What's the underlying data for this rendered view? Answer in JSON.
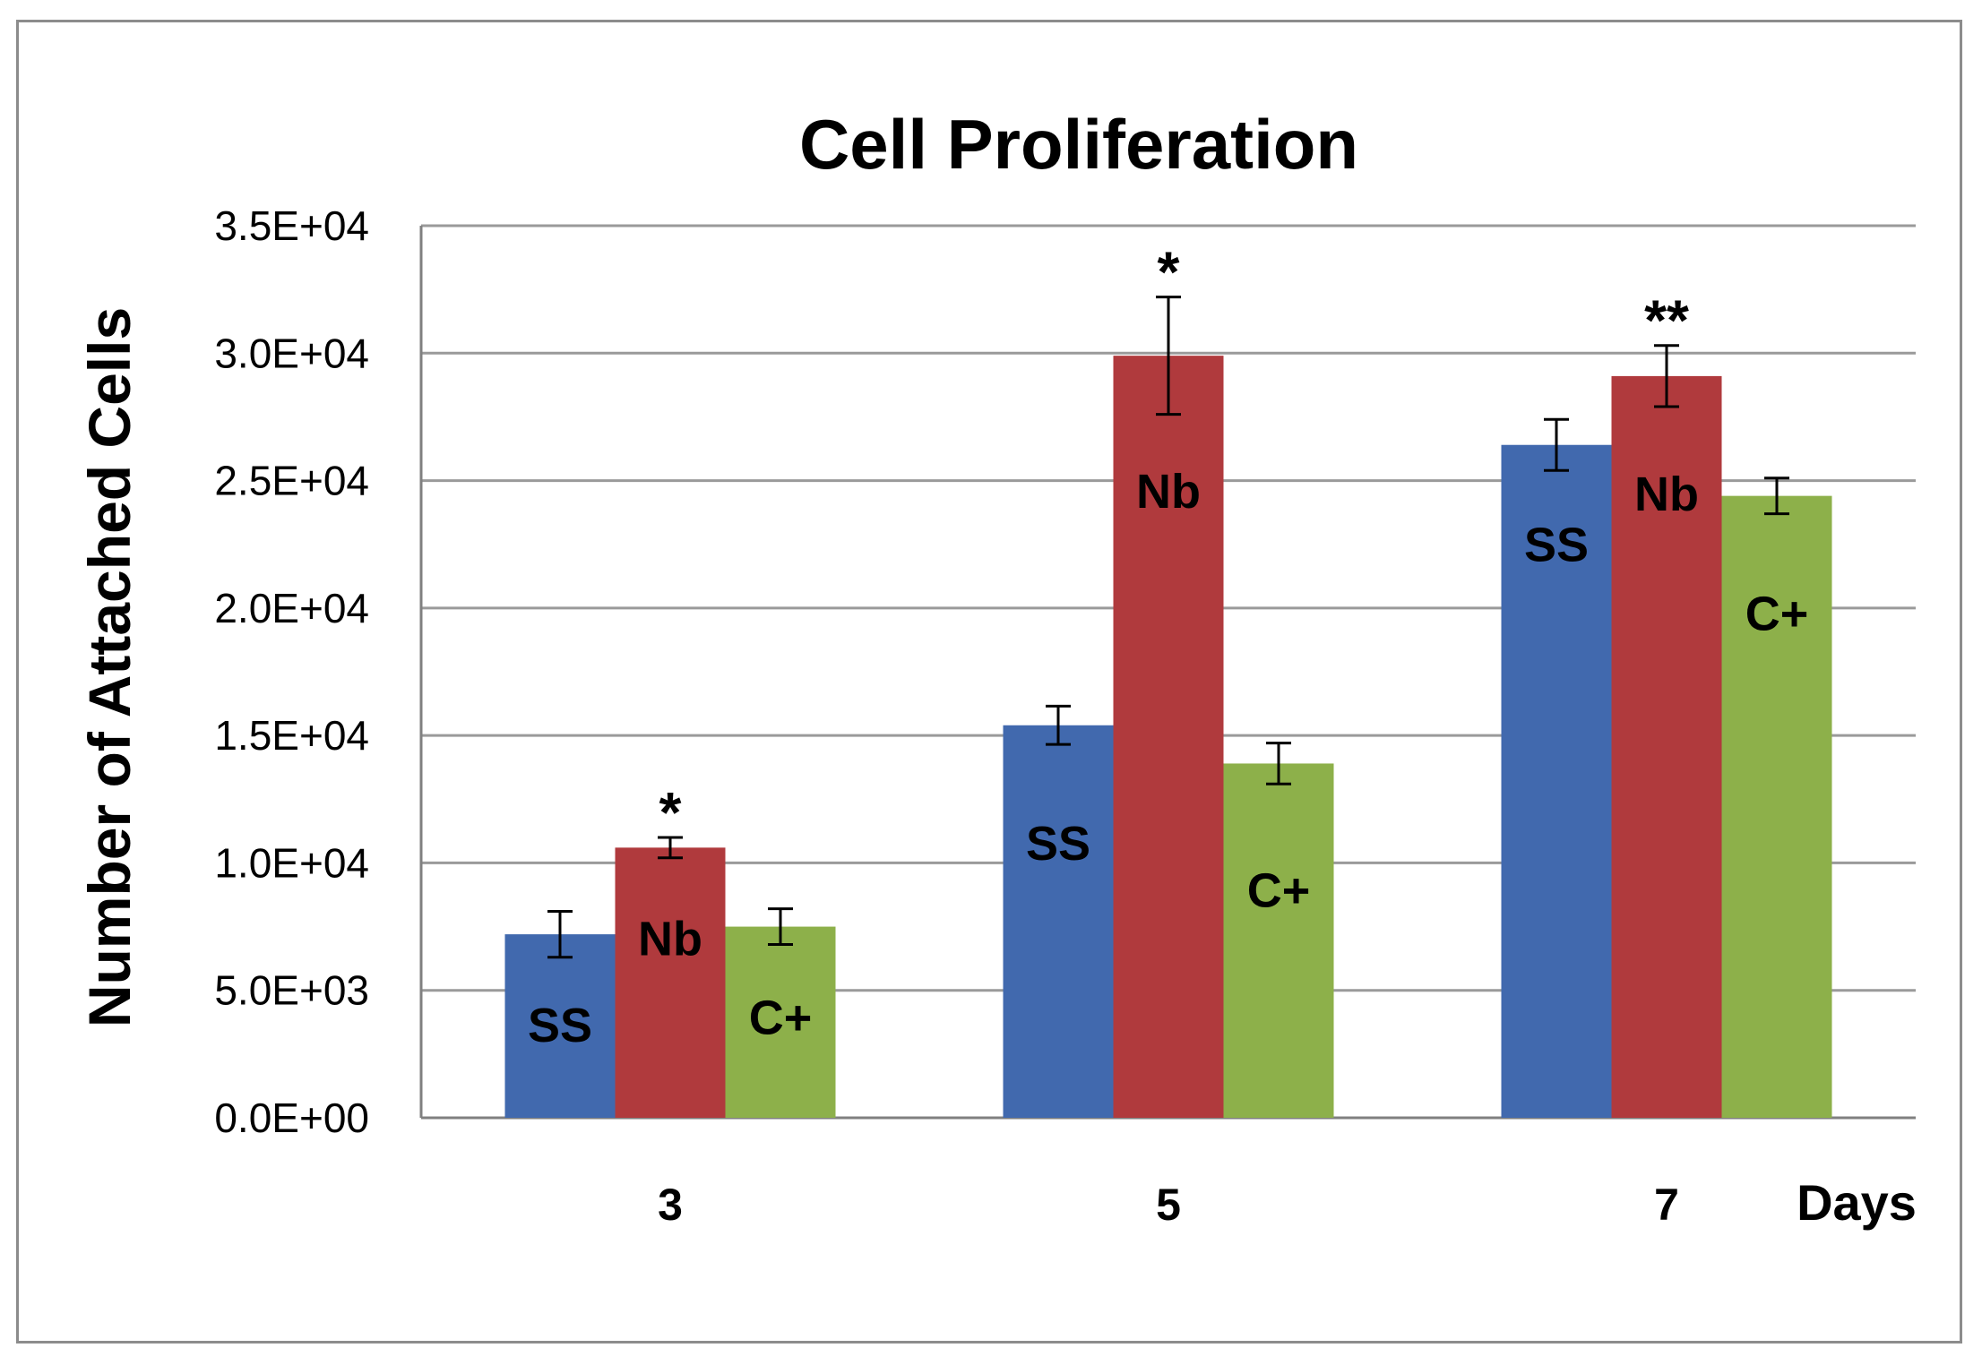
{
  "chart_data": {
    "type": "bar",
    "title": "Cell Proliferation",
    "xlabel": "Days",
    "ylabel": "Number of Attached Cells",
    "categories": [
      "3",
      "5",
      "7"
    ],
    "ylim": [
      0,
      35000
    ],
    "yticks": [
      0,
      5000,
      10000,
      15000,
      20000,
      25000,
      30000,
      35000
    ],
    "ytick_labels": [
      "0.0E+00",
      "5.0E+03",
      "1.0E+04",
      "1.5E+04",
      "2.0E+04",
      "2.5E+04",
      "3.0E+04",
      "3.5E+04"
    ],
    "grid": true,
    "legend": "none (series labeled inside bars)",
    "series": [
      {
        "name": "SS",
        "color": "#4169ae",
        "values": [
          7200,
          15400,
          26400
        ],
        "errors": [
          900,
          750,
          1000
        ],
        "bar_labels": [
          "SS",
          "SS",
          "SS"
        ]
      },
      {
        "name": "Nb",
        "color": "#b03a3d",
        "values": [
          10600,
          29900,
          29100
        ],
        "errors": [
          400,
          2300,
          1200
        ],
        "bar_labels": [
          "Nb",
          "Nb",
          "Nb"
        ]
      },
      {
        "name": "C+",
        "color": "#8db04a",
        "values": [
          7500,
          13900,
          24400
        ],
        "errors": [
          700,
          800,
          700
        ],
        "bar_labels": [
          "C+",
          "C+",
          "C+"
        ]
      }
    ],
    "annotations": [
      {
        "text": "*",
        "category_index": 0,
        "series_index": 1
      },
      {
        "text": "*",
        "category_index": 1,
        "series_index": 1
      },
      {
        "text": "**",
        "category_index": 2,
        "series_index": 1
      }
    ]
  }
}
